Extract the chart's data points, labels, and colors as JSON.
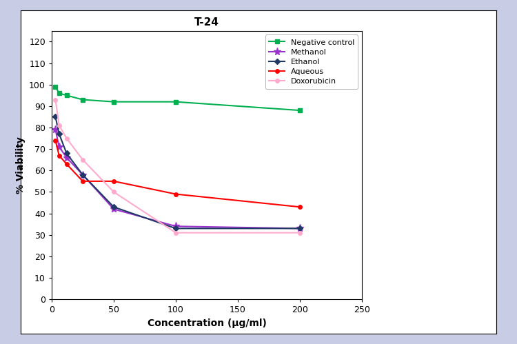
{
  "title": "T-24",
  "xlabel": "Concentration (μg/ml)",
  "ylabel": "% Viability",
  "x_values": [
    3,
    6,
    12,
    25,
    50,
    100,
    200
  ],
  "negative_control": [
    99,
    96,
    95,
    93,
    92,
    92,
    88
  ],
  "methanol": [
    79,
    71,
    66,
    58,
    42,
    34,
    33
  ],
  "ethanol": [
    85,
    77,
    68,
    58,
    43,
    33,
    33
  ],
  "aqueous": [
    74,
    67,
    63,
    55,
    55,
    49,
    43
  ],
  "doxorubicin": [
    93,
    81,
    75,
    65,
    50,
    31,
    31
  ],
  "neg_ctrl_color": "#00b050",
  "methanol_color": "#9933cc",
  "ethanol_color": "#1f3864",
  "aqueous_color": "#ff0000",
  "doxorubicin_color": "#ffaacc",
  "background_outer": "#c8cce4",
  "background_inner": "#ffffff",
  "ylim": [
    0,
    125
  ],
  "xlim": [
    0,
    250
  ],
  "yticks": [
    0,
    10,
    20,
    30,
    40,
    50,
    60,
    70,
    80,
    90,
    100,
    110,
    120
  ],
  "xticks": [
    0,
    50,
    100,
    150,
    200,
    250
  ],
  "title_fontsize": 11,
  "axis_label_fontsize": 10,
  "tick_fontsize": 9,
  "legend_fontsize": 8,
  "marker_size": 5,
  "line_width": 1.5
}
